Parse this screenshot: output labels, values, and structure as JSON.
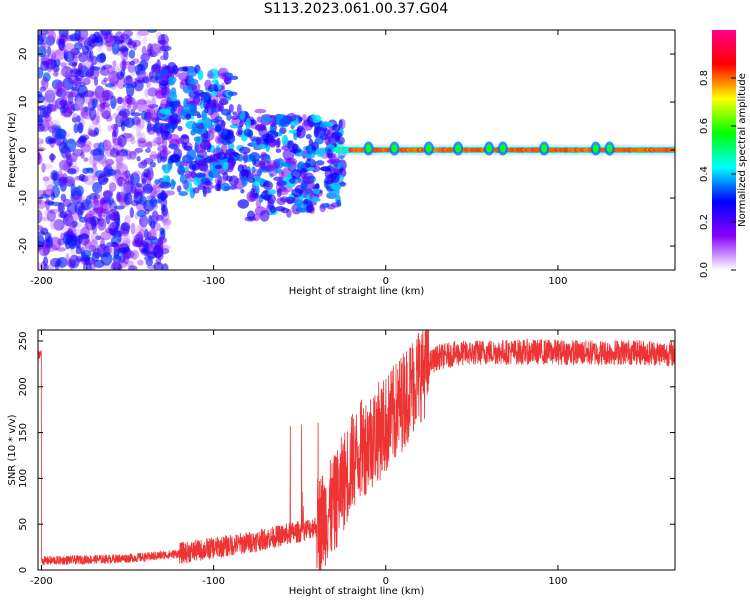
{
  "title": "S113.2023.061.00.37.G04",
  "chart_data": [
    {
      "type": "heatmap",
      "xlabel": "Height of straight line (km)",
      "ylabel": "Frequency (Hz)",
      "xlim": [
        -202,
        168
      ],
      "ylim": [
        -25,
        25
      ],
      "xticks": [
        -200,
        -100,
        0,
        100
      ],
      "yticks": [
        20,
        10,
        0,
        -10,
        -20
      ],
      "grid": false,
      "colorbar": {
        "label": "Normalized spectral amplitude",
        "range": [
          0,
          1
        ],
        "ticks": [
          0.0,
          0.2,
          0.4,
          0.6,
          0.8
        ],
        "colors": [
          "#ffffff",
          "#8800ff",
          "#0000ff",
          "#00ffff",
          "#00ff00",
          "#ffff00",
          "#ff0000",
          "#ff0088"
        ]
      },
      "description_regions": [
        {
          "x": [
            -202,
            -130
          ],
          "freq": [
            -25,
            25
          ],
          "amplitude": [
            0.05,
            0.3
          ]
        },
        {
          "x": [
            -130,
            -30
          ],
          "freq": [
            -12,
            12
          ],
          "amplitude": [
            0.2,
            0.4
          ]
        },
        {
          "x": [
            -30,
            168
          ],
          "freq": [
            -1,
            1
          ],
          "amplitude": [
            0.8,
            1.0
          ]
        }
      ]
    },
    {
      "type": "line",
      "xlabel": "Height of straight line (km)",
      "ylabel": "SNR (10 * v/v)",
      "xlim": [
        -202,
        168
      ],
      "ylim": [
        0,
        262
      ],
      "xticks": [
        -200,
        -100,
        0,
        100
      ],
      "yticks": [
        0,
        50,
        100,
        150,
        200,
        250
      ],
      "grid": false,
      "series": [
        {
          "color": "#ee3333",
          "x": [
            -200,
            -180,
            -160,
            -140,
            -120,
            -100,
            -80,
            -70,
            -60,
            -50,
            -40,
            -30,
            -25,
            -20,
            -15,
            -10,
            -5,
            0,
            5,
            10,
            15,
            20,
            25,
            30,
            40,
            60,
            80,
            100,
            120,
            140,
            168
          ],
          "y": [
            10,
            11,
            12,
            14,
            18,
            24,
            30,
            34,
            38,
            42,
            48,
            70,
            95,
            115,
            130,
            140,
            150,
            158,
            170,
            185,
            200,
            215,
            225,
            232,
            236,
            238,
            238,
            238,
            237,
            238,
            236
          ]
        }
      ]
    }
  ]
}
